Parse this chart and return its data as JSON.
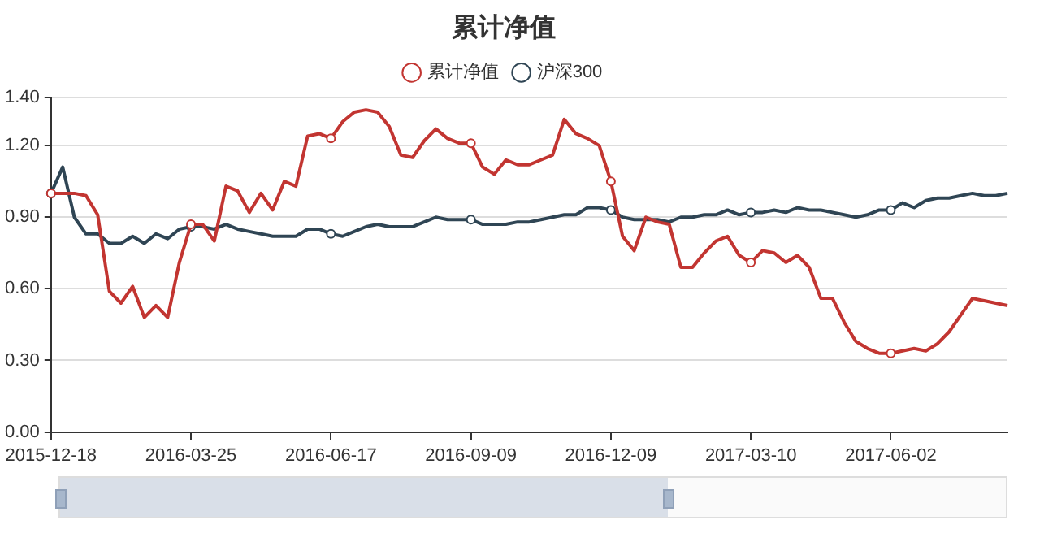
{
  "chart_data": {
    "type": "line",
    "title": "累计净值",
    "categories": [
      "2015-12-18",
      null,
      null,
      null,
      null,
      null,
      null,
      null,
      null,
      null,
      null,
      null,
      "2016-03-25",
      null,
      null,
      null,
      null,
      null,
      null,
      null,
      null,
      null,
      null,
      null,
      "2016-06-17",
      null,
      null,
      null,
      null,
      null,
      null,
      null,
      null,
      null,
      null,
      null,
      "2016-09-09",
      null,
      null,
      null,
      null,
      null,
      null,
      null,
      null,
      null,
      null,
      null,
      "2016-12-09",
      null,
      null,
      null,
      null,
      null,
      null,
      null,
      null,
      null,
      null,
      null,
      "2017-03-10",
      null,
      null,
      null,
      null,
      null,
      null,
      null,
      null,
      null,
      null,
      null,
      "2017-06-02",
      null,
      null,
      null,
      null,
      null,
      null,
      null,
      null,
      null,
      null
    ],
    "series": [
      {
        "name": "累计净值",
        "color": "#c23531",
        "values": [
          1.0,
          1.0,
          1.0,
          0.99,
          0.91,
          0.59,
          0.54,
          0.61,
          0.48,
          0.53,
          0.48,
          0.71,
          0.87,
          0.87,
          0.8,
          1.03,
          1.01,
          0.92,
          1.0,
          0.93,
          1.05,
          1.03,
          1.24,
          1.25,
          1.23,
          1.3,
          1.34,
          1.35,
          1.34,
          1.28,
          1.16,
          1.15,
          1.22,
          1.27,
          1.23,
          1.21,
          1.21,
          1.11,
          1.08,
          1.14,
          1.12,
          1.12,
          1.14,
          1.16,
          1.31,
          1.25,
          1.23,
          1.2,
          1.05,
          0.82,
          0.76,
          0.9,
          0.88,
          0.87,
          0.69,
          0.69,
          0.75,
          0.8,
          0.82,
          0.74,
          0.71,
          0.76,
          0.75,
          0.71,
          0.74,
          0.69,
          0.56,
          0.56,
          0.46,
          0.38,
          0.35,
          0.33,
          0.33,
          0.34,
          0.35,
          0.34,
          0.37,
          0.42,
          0.49,
          0.56,
          0.55,
          0.54,
          0.53
        ]
      },
      {
        "name": "沪深300",
        "color": "#2f4554",
        "values": [
          1.0,
          1.11,
          0.9,
          0.83,
          0.83,
          0.79,
          0.79,
          0.82,
          0.79,
          0.83,
          0.81,
          0.85,
          0.86,
          0.86,
          0.85,
          0.87,
          0.85,
          0.84,
          0.83,
          0.82,
          0.82,
          0.82,
          0.85,
          0.85,
          0.83,
          0.82,
          0.84,
          0.86,
          0.87,
          0.86,
          0.86,
          0.86,
          0.88,
          0.9,
          0.89,
          0.89,
          0.89,
          0.87,
          0.87,
          0.87,
          0.88,
          0.88,
          0.89,
          0.9,
          0.91,
          0.91,
          0.94,
          0.94,
          0.93,
          0.9,
          0.89,
          0.89,
          0.89,
          0.88,
          0.9,
          0.9,
          0.91,
          0.91,
          0.93,
          0.91,
          0.92,
          0.92,
          0.93,
          0.92,
          0.94,
          0.93,
          0.93,
          0.92,
          0.91,
          0.9,
          0.91,
          0.93,
          0.93,
          0.96,
          0.94,
          0.97,
          0.98,
          0.98,
          0.99,
          1.0,
          0.99,
          0.99,
          1.0
        ]
      }
    ],
    "ylim": [
      0,
      1.4
    ],
    "yticks": [
      {
        "value": 0,
        "label": "0.00"
      },
      {
        "value": 0.3,
        "label": "0.30"
      },
      {
        "value": 0.6,
        "label": "0.60"
      },
      {
        "value": 0.9,
        "label": "0.90"
      },
      {
        "value": 1.2,
        "label": "1.20"
      },
      {
        "value": 1.4,
        "label": "1.40"
      }
    ],
    "grid": "y",
    "legend": "top",
    "line_style": "solid"
  }
}
